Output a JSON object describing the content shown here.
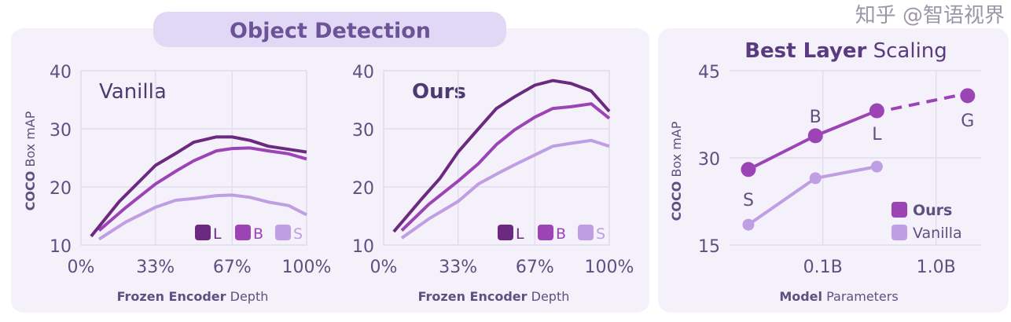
{
  "section_title": "Object Detection",
  "colors": {
    "L": "#6b2a80",
    "B": "#9c44b6",
    "S": "#bf9ee3",
    "text": "#5e5080",
    "title": "#5a3a80",
    "panel": "#f4f1fa",
    "pill": "#e1d8f5"
  },
  "watermark": "知乎 @智语视界",
  "chart_data": [
    {
      "type": "line",
      "title": "Vanilla",
      "xlabel_bold": "Frozen Encoder",
      "xlabel_rest": "Depth",
      "ylabel_bold": "COCO",
      "ylabel_rest": "Box mAP",
      "xlim": [
        0,
        100
      ],
      "ylim": [
        10,
        40
      ],
      "xticks": [
        "0%",
        "33%",
        "67%",
        "100%"
      ],
      "xtick_values": [
        0,
        33,
        67,
        100
      ],
      "yticks": [
        "10",
        "20",
        "30",
        "40"
      ],
      "ytick_values": [
        10,
        20,
        30,
        40
      ],
      "grid": true,
      "legend": "bottom-right",
      "series": [
        {
          "name": "L",
          "x": [
            4.5,
            17,
            33,
            43,
            50,
            60,
            67,
            75,
            83,
            100
          ],
          "y": [
            11.5,
            17.5,
            23.7,
            26,
            27.7,
            28.6,
            28.6,
            28,
            27,
            26
          ]
        },
        {
          "name": "B",
          "x": [
            8,
            20,
            33,
            42,
            50,
            60,
            67,
            75,
            83,
            92,
            100
          ],
          "y": [
            12.5,
            16.5,
            20.5,
            22.7,
            24.5,
            26.2,
            26.6,
            26.7,
            26.2,
            25.7,
            24.8
          ]
        },
        {
          "name": "S",
          "x": [
            8,
            20,
            33,
            42,
            50,
            60,
            67,
            75,
            83,
            92,
            100
          ],
          "y": [
            11,
            14,
            16.5,
            17.7,
            18,
            18.5,
            18.6,
            18.2,
            17.4,
            16.8,
            15.2
          ]
        }
      ]
    },
    {
      "type": "line",
      "title": "Ours",
      "xlabel_bold": "Frozen Encoder",
      "xlabel_rest": "Depth",
      "xlim": [
        0,
        100
      ],
      "ylim": [
        10,
        40
      ],
      "xticks": [
        "0%",
        "33%",
        "67%",
        "100%"
      ],
      "xtick_values": [
        0,
        33,
        67,
        100
      ],
      "yticks": [
        "10",
        "20",
        "30",
        "40"
      ],
      "ytick_values": [
        10,
        20,
        30,
        40
      ],
      "grid": true,
      "legend": "bottom-right",
      "series": [
        {
          "name": "L",
          "x": [
            4.5,
            17,
            25,
            33,
            42,
            50,
            58,
            67,
            75,
            83,
            92,
            100
          ],
          "y": [
            12.3,
            18,
            21.5,
            26,
            30,
            33.5,
            35.5,
            37.5,
            38.3,
            37.8,
            36.5,
            33
          ]
        },
        {
          "name": "B",
          "x": [
            8,
            20,
            33,
            42,
            50,
            58,
            67,
            75,
            83,
            92,
            100
          ],
          "y": [
            12.5,
            17,
            21,
            24,
            27.3,
            29.8,
            32,
            33.5,
            33.8,
            34.3,
            31.8
          ]
        },
        {
          "name": "S",
          "x": [
            8,
            20,
            33,
            42,
            50,
            58,
            67,
            75,
            83,
            92,
            100
          ],
          "y": [
            11.2,
            14.5,
            17.5,
            20.5,
            22.2,
            23.8,
            25.5,
            27,
            27.5,
            28,
            27
          ]
        }
      ]
    },
    {
      "type": "line",
      "title_bold": "Best Layer",
      "title_rest": "Scaling",
      "xlabel_bold": "Model",
      "xlabel_rest": "Parameters",
      "ylabel_bold": "COCO",
      "ylabel_rest": "Box mAP",
      "xscale": "log",
      "xlim": [
        0.015,
        2.5
      ],
      "ylim": [
        15,
        45
      ],
      "xticks": [
        "0.1B",
        "1.0B"
      ],
      "xtick_values": [
        0.1,
        1.0
      ],
      "yticks": [
        "15",
        "30",
        "45"
      ],
      "ytick_values": [
        15,
        30,
        45
      ],
      "grid": true,
      "legend": "bottom-right",
      "point_labels": [
        "S",
        "B",
        "L",
        "G"
      ],
      "series": [
        {
          "name": "Ours",
          "x": [
            0.022,
            0.086,
            0.3,
            1.9
          ],
          "y": [
            28,
            33.8,
            38.1,
            40.7
          ],
          "dashed_from_index": 2
        },
        {
          "name": "Vanilla",
          "x": [
            0.022,
            0.086,
            0.3
          ],
          "y": [
            18.5,
            26.5,
            28.5
          ]
        }
      ]
    }
  ]
}
